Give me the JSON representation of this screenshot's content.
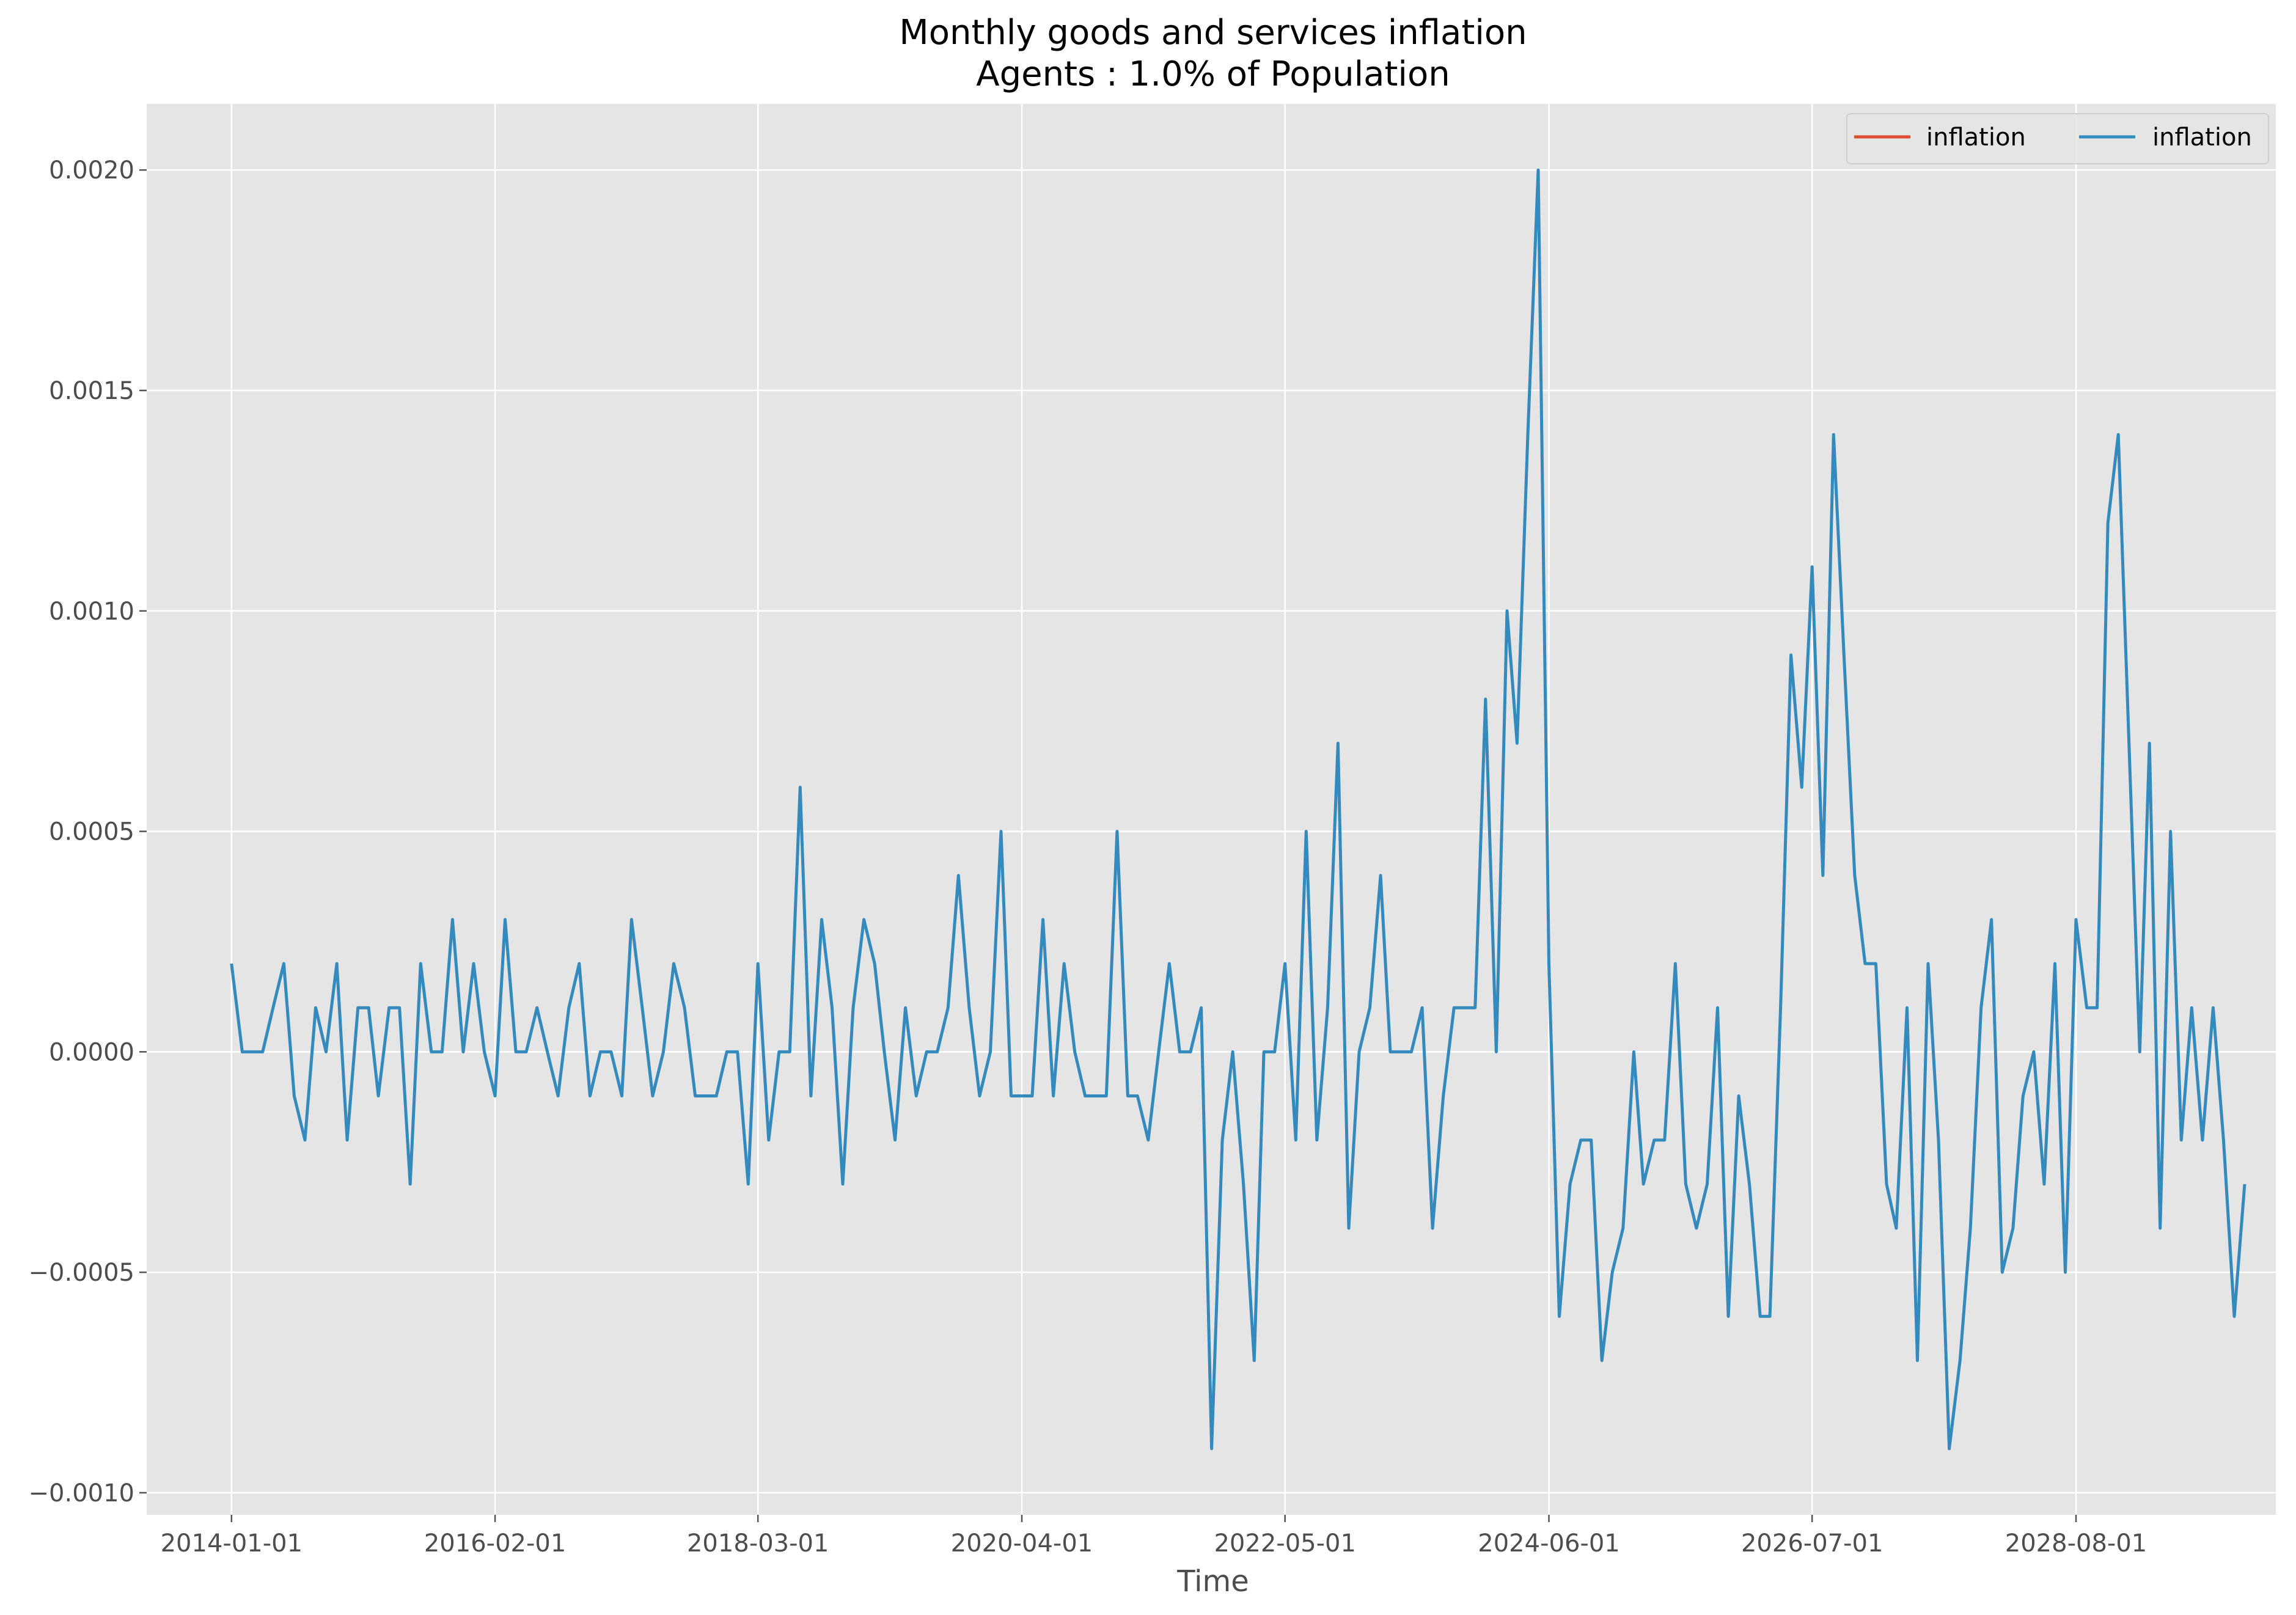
{
  "chart_data": {
    "type": "line",
    "title": "Monthly goods and services inflation",
    "subtitle": "Agents : 1.0% of Population",
    "xlabel": "Time",
    "ylabel": "",
    "x_tick_labels": [
      "2014-01-01",
      "2016-02-01",
      "2018-03-01",
      "2020-04-01",
      "2022-05-01",
      "2024-06-01",
      "2026-07-01",
      "2028-08-01"
    ],
    "x_range": [
      "2013-05-01",
      "2030-03-01"
    ],
    "y_tick_labels": [
      "−0.0010",
      "−0.0005",
      "0.0000",
      "0.0005",
      "0.0010",
      "0.0015",
      "0.0020"
    ],
    "y_ticks": [
      -0.001,
      -0.0005,
      0,
      0.0005,
      0.001,
      0.0015,
      0.002
    ],
    "ylim": [
      -0.00105,
      0.00215
    ],
    "grid": true,
    "legend_position": "top-right",
    "start": "2014-01-01",
    "frequency": "monthly",
    "series": [
      {
        "name": "inflation",
        "color": "#E24A33",
        "values": []
      },
      {
        "name": "inflation",
        "color": "#348ABD",
        "values": [
          0.0002,
          0,
          0,
          0,
          0.0001,
          0.0002,
          -0.0001,
          -0.0002,
          0.0001,
          0,
          0.0002,
          -0.0002,
          0.0001,
          0.0001,
          -0.0001,
          0.0001,
          0.0001,
          -0.0003,
          0.0002,
          0,
          0,
          0.0003,
          0,
          0.0002,
          0,
          -0.0001,
          0.0003,
          0,
          0,
          0.0001,
          0,
          -0.0001,
          0.0001,
          0.0002,
          -0.0001,
          0,
          0,
          -0.0001,
          0.0003,
          0.0001,
          -0.0001,
          0,
          0.0002,
          0.0001,
          -0.0001,
          -0.0001,
          -0.0001,
          0,
          0,
          -0.0003,
          0.0002,
          -0.0002,
          0,
          0,
          0.0006,
          -0.0001,
          0.0003,
          0.0001,
          -0.0003,
          0.0001,
          0.0003,
          0.0002,
          0,
          -0.0002,
          0.0001,
          -0.0001,
          0,
          0,
          0.0001,
          0.0004,
          0.0001,
          -0.0001,
          0,
          0.0005,
          -0.0001,
          -0.0001,
          -0.0001,
          0.0003,
          -0.0001,
          0.0002,
          0,
          -0.0001,
          -0.0001,
          -0.0001,
          0.0005,
          -0.0001,
          -0.0001,
          -0.0002,
          0,
          0.0002,
          0,
          0,
          0.0001,
          -0.0009,
          -0.0002,
          0,
          -0.0003,
          -0.0007,
          0,
          0,
          0.0002,
          -0.0002,
          0.0005,
          -0.0002,
          0.0001,
          0.0007,
          -0.0004,
          0,
          0.0001,
          0.0004,
          0,
          0,
          0,
          0.0001,
          -0.0004,
          -0.0001,
          0.0001,
          0.0001,
          0.0001,
          0.0008,
          0,
          0.001,
          0.0007,
          0.0014,
          0.002,
          0.0002,
          -0.0006,
          -0.0003,
          -0.0002,
          -0.0002,
          -0.0007,
          -0.0005,
          -0.0004,
          0,
          -0.0003,
          -0.0002,
          -0.0002,
          0.0002,
          -0.0003,
          -0.0004,
          -0.0003,
          0.0001,
          -0.0006,
          -0.0001,
          -0.0003,
          -0.0006,
          -0.0006,
          0.0001,
          0.0009,
          0.0006,
          0.0011,
          0.0004,
          0.0014,
          0.0009,
          0.0004,
          0.0002,
          0.0002,
          -0.0003,
          -0.0004,
          0.0001,
          -0.0007,
          0.0002,
          -0.0002,
          -0.0009,
          -0.0007,
          -0.0004,
          0.0001,
          0.0003,
          -0.0005,
          -0.0004,
          -0.0001,
          0,
          -0.0003,
          0.0002,
          -0.0005,
          0.0003,
          0.0001,
          0.0001,
          0.0012,
          0.0014,
          0.0007,
          0,
          0.0007,
          -0.0004,
          0.0005,
          -0.0002,
          0.0001,
          -0.0002,
          0.0001,
          -0.0002,
          -0.0006,
          -0.0003
        ]
      }
    ]
  }
}
